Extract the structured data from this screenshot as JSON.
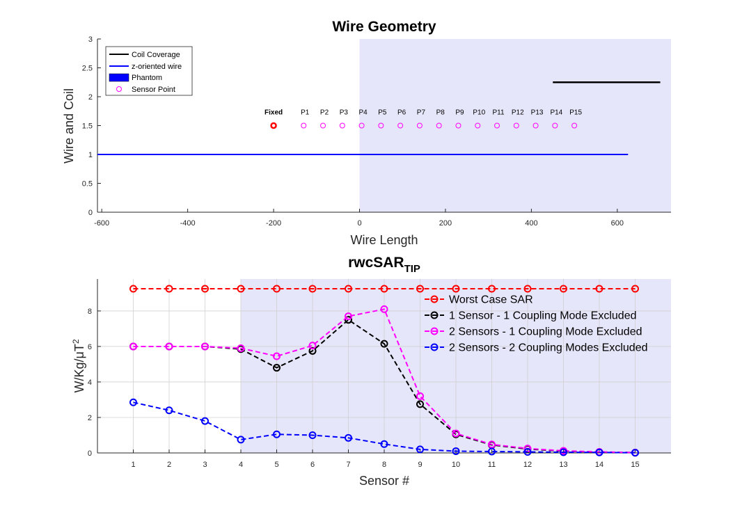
{
  "chart_data": [
    {
      "type": "line",
      "title": "Wire Geometry",
      "xlabel": "Wire Length",
      "ylabel": "Wire and Coil",
      "xlim": [
        -610,
        725
      ],
      "ylim": [
        0,
        3
      ],
      "xticks": [
        -600,
        -400,
        -200,
        0,
        200,
        400,
        600
      ],
      "xtick_labels": [
        "-600",
        "-400",
        "-200",
        "0",
        "200",
        "400",
        "600"
      ],
      "yticks": [
        0,
        0.5,
        1,
        1.5,
        2,
        2.5,
        3
      ],
      "ytick_labels": [
        "0",
        "0.5",
        "1",
        "1.5",
        "2",
        "2.5",
        "3"
      ],
      "phantom": {
        "name": "Phantom",
        "x": [
          0,
          725
        ],
        "y": [
          0,
          3
        ],
        "color": "#e6e6fa"
      },
      "coil": {
        "name": "Coil Coverage",
        "x": [
          450,
          700
        ],
        "y": 2.25,
        "color": "#000000"
      },
      "wire": {
        "name": "z-oriented wire",
        "x": [
          -610,
          625
        ],
        "y": 1,
        "color": "#0000ff"
      },
      "fixed_point": {
        "label": "Fixed",
        "x": -200,
        "y": 1.5,
        "color": "#ff0000"
      },
      "sensor_points": {
        "name": "Sensor Point",
        "color": "#ff00ff",
        "y": 1.5,
        "labels": [
          "P1",
          "P2",
          "P3",
          "P4",
          "P5",
          "P6",
          "P7",
          "P8",
          "P9",
          "P10",
          "P11",
          "P12",
          "P13",
          "P14",
          "P15"
        ],
        "x": [
          -130,
          -85,
          -40,
          5,
          50,
          95,
          140,
          185,
          230,
          275,
          320,
          365,
          410,
          455,
          500
        ]
      },
      "legend": {
        "placement": "top-left",
        "entries": [
          "Coil Coverage",
          "z-oriented wire",
          "Phantom",
          "Sensor Point"
        ]
      }
    },
    {
      "type": "line",
      "title_main": "rwcSAR",
      "title_sub": "TIP",
      "xlabel": "Sensor #",
      "ylabel_main": "W/Kg/μT",
      "ylabel_sup": "2",
      "xlim": [
        0,
        16
      ],
      "ylim": [
        0,
        9.8
      ],
      "grid": true,
      "categories": [
        "1",
        "2",
        "3",
        "4",
        "5",
        "6",
        "7",
        "8",
        "9",
        "10",
        "11",
        "12",
        "13",
        "14",
        "15"
      ],
      "yticks": [
        0,
        2,
        4,
        6,
        8
      ],
      "ytick_labels": [
        "0",
        "2",
        "4",
        "6",
        "8"
      ],
      "phantom": {
        "x_from": 4,
        "x_to": 16,
        "color": "#e6e6fa"
      },
      "series": [
        {
          "name": "Worst Case SAR",
          "color": "#ff0000",
          "values": [
            9.25,
            9.25,
            9.25,
            9.25,
            9.25,
            9.25,
            9.25,
            9.25,
            9.25,
            9.25,
            9.25,
            9.25,
            9.25,
            9.25,
            9.25
          ]
        },
        {
          "name": "1 Sensor - 1 Coupling Mode Excluded",
          "color": "#000000",
          "values": [
            6.0,
            6.0,
            6.0,
            5.85,
            4.8,
            5.75,
            7.5,
            6.15,
            2.75,
            1.05,
            0.45,
            0.22,
            0.1,
            0.05,
            0.02
          ]
        },
        {
          "name": "2 Sensors - 1 Coupling Mode Excluded",
          "color": "#ff00ff",
          "values": [
            6.0,
            6.0,
            6.0,
            5.9,
            5.45,
            6.05,
            7.7,
            8.1,
            3.2,
            1.1,
            0.48,
            0.25,
            0.12,
            0.06,
            0.02
          ]
        },
        {
          "name": "2 Sensors - 2 Coupling Modes Excluded",
          "color": "#0000ff",
          "values": [
            2.85,
            2.4,
            1.8,
            0.75,
            1.05,
            1.0,
            0.85,
            0.5,
            0.2,
            0.1,
            0.08,
            0.06,
            0.04,
            0.03,
            0.01
          ]
        }
      ],
      "legend": {
        "placement": "top-right"
      }
    }
  ]
}
